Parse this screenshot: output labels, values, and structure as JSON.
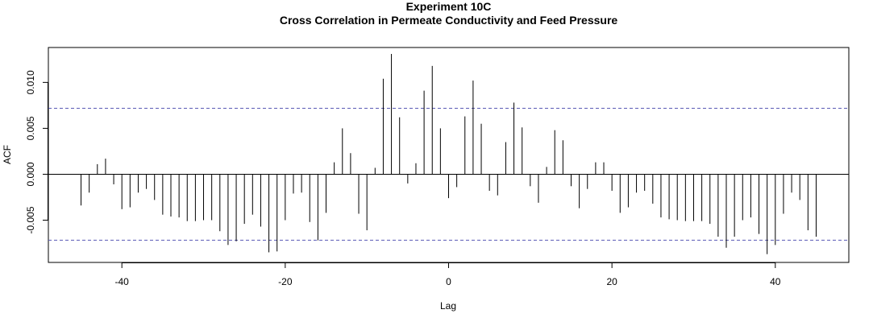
{
  "chart_data": {
    "type": "bar",
    "title": "Experiment  10C",
    "subtitle": "Cross Correlation in Permeate Conductivity and Feed Pressure",
    "xlabel": "Lag",
    "ylabel": "ACF",
    "xlim": [
      -49,
      49
    ],
    "ylim": [
      -0.0096,
      0.0138
    ],
    "x_ticks": [
      -40,
      -20,
      0,
      20,
      40
    ],
    "y_ticks": [
      -0.005,
      0.0,
      0.005,
      0.01
    ],
    "x_tick_labels": [
      "-40",
      "-20",
      "0",
      "20",
      "40"
    ],
    "y_tick_labels": [
      "-0.005",
      "0.000",
      "0.005",
      "0.010"
    ],
    "confidence_bound": 0.00718,
    "lags": [
      -45,
      -44,
      -43,
      -42,
      -41,
      -40,
      -39,
      -38,
      -37,
      -36,
      -35,
      -34,
      -33,
      -32,
      -31,
      -30,
      -29,
      -28,
      -27,
      -26,
      -25,
      -24,
      -23,
      -22,
      -21,
      -20,
      -19,
      -18,
      -17,
      -16,
      -15,
      -14,
      -13,
      -12,
      -11,
      -10,
      -9,
      -8,
      -7,
      -6,
      -5,
      -4,
      -3,
      -2,
      -1,
      0,
      1,
      2,
      3,
      4,
      5,
      6,
      7,
      8,
      9,
      10,
      11,
      12,
      13,
      14,
      15,
      16,
      17,
      18,
      19,
      20,
      21,
      22,
      23,
      24,
      25,
      26,
      27,
      28,
      29,
      30,
      31,
      32,
      33,
      34,
      35,
      36,
      37,
      38,
      39,
      40,
      41,
      42,
      43,
      44,
      45
    ],
    "values": [
      -0.0034,
      -0.002,
      0.0011,
      0.0017,
      -0.0011,
      -0.0038,
      -0.0036,
      -0.002,
      -0.0016,
      -0.0028,
      -0.0044,
      -0.0046,
      -0.0047,
      -0.0051,
      -0.0051,
      -0.005,
      -0.005,
      -0.0062,
      -0.0077,
      -0.0073,
      -0.0054,
      -0.0044,
      -0.0057,
      -0.0085,
      -0.0084,
      -0.005,
      -0.0021,
      -0.002,
      -0.0052,
      -0.0072,
      -0.0042,
      0.0013,
      0.005,
      0.0023,
      -0.0043,
      -0.0061,
      0.0007,
      0.0104,
      0.0131,
      0.0062,
      -0.001,
      0.0012,
      0.0091,
      0.0118,
      0.005,
      -0.0026,
      -0.0014,
      0.0063,
      0.0102,
      0.0055,
      -0.0018,
      -0.0023,
      0.0035,
      0.0078,
      0.0051,
      -0.0013,
      -0.0031,
      0.0008,
      0.0048,
      0.0037,
      -0.0013,
      -0.0037,
      -0.0016,
      0.0013,
      0.0013,
      -0.0018,
      -0.0042,
      -0.0036,
      -0.002,
      -0.0018,
      -0.0032,
      -0.0047,
      -0.0049,
      -0.005,
      -0.0051,
      -0.0051,
      -0.0051,
      -0.0054,
      -0.0068,
      -0.008,
      -0.0068,
      -0.005,
      -0.0047,
      -0.0065,
      -0.0087,
      -0.0077,
      -0.0043,
      -0.002,
      -0.0028,
      -0.0061,
      -0.0068
    ]
  }
}
